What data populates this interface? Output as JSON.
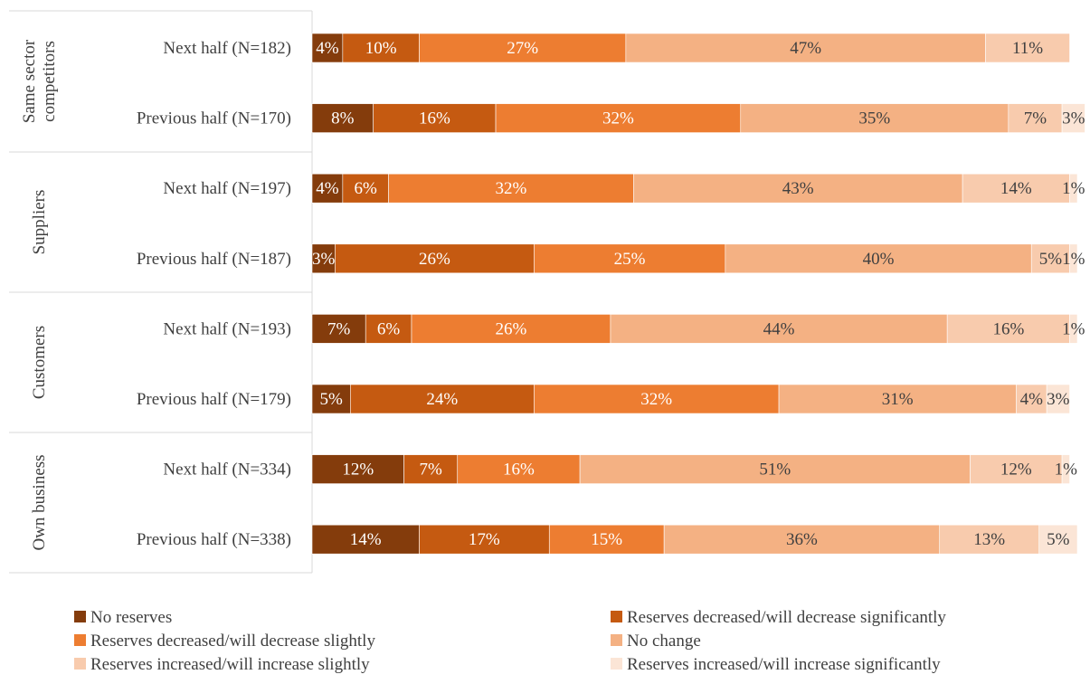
{
  "chart_data": {
    "type": "bar",
    "orientation": "horizontal",
    "stacked": true,
    "xlim": [
      0,
      100
    ],
    "unit": "%",
    "legend_position": "bottom",
    "groups": [
      {
        "name": "Same sector competitors",
        "rows": [
          0,
          1
        ]
      },
      {
        "name": "Suppliers",
        "rows": [
          2,
          3
        ]
      },
      {
        "name": "Customers",
        "rows": [
          4,
          5
        ]
      },
      {
        "name": "Own business",
        "rows": [
          6,
          7
        ]
      }
    ],
    "categories": [
      "Next half (N=182)",
      "Previous half (N=170)",
      "Next half (N=197)",
      "Previous half (N=187)",
      "Next half (N=193)",
      "Previous half (N=179)",
      "Next half (N=334)",
      "Previous half (N=338)"
    ],
    "series": [
      {
        "name": "No reserves",
        "color": "#843C0C",
        "values": [
          4,
          8,
          4,
          3,
          7,
          5,
          12,
          14
        ]
      },
      {
        "name": "Reserves decreased/will decrease significantly",
        "color": "#C55A11",
        "values": [
          10,
          16,
          6,
          26,
          6,
          24,
          7,
          17
        ]
      },
      {
        "name": "Reserves decreased/will decrease slightly",
        "color": "#ED7D31",
        "values": [
          27,
          32,
          32,
          25,
          26,
          32,
          16,
          15
        ]
      },
      {
        "name": "No change",
        "color": "#F4B183",
        "values": [
          47,
          35,
          43,
          40,
          44,
          31,
          51,
          36
        ]
      },
      {
        "name": "Reserves increased/will increase slightly",
        "color": "#F8CBAD",
        "values": [
          11,
          7,
          14,
          5,
          16,
          4,
          12,
          13
        ]
      },
      {
        "name": "Reserves increased/will increase significantly",
        "color": "#FBE5D6",
        "values": [
          0,
          3,
          1,
          1,
          1,
          3,
          1,
          5
        ]
      }
    ],
    "data_labels": [
      [
        "4%",
        "8%",
        "4%",
        "3%",
        "7%",
        "5%",
        "12%",
        "14%"
      ],
      [
        "10%",
        "16%",
        "6%",
        "26%",
        "6%",
        "24%",
        "7%",
        "17%"
      ],
      [
        "27%",
        "32%",
        "32%",
        "25%",
        "26%",
        "32%",
        "16%",
        "15%"
      ],
      [
        "47%",
        "35%",
        "43%",
        "40%",
        "44%",
        "31%",
        "51%",
        "36%"
      ],
      [
        "11%",
        "7%",
        "14%",
        "5%",
        "16%",
        "4%",
        "12%",
        "13%"
      ],
      [
        "",
        "3%",
        "1%",
        "1%",
        "1%",
        "3%",
        "1%",
        "5%"
      ]
    ]
  }
}
